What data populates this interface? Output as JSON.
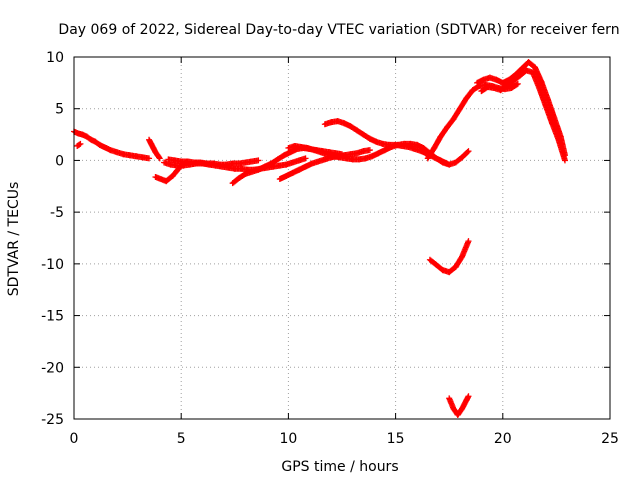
{
  "chart_data": {
    "type": "scatter",
    "title": "Day 069 of 2022, Sidereal Day-to-day VTEC variation (SDTVAR) for receiver fern",
    "xlabel": "GPS time / hours",
    "ylabel": "SDTVAR / TECUs",
    "xlim": [
      0,
      25
    ],
    "ylim": [
      -25,
      10
    ],
    "xticks": [
      "0",
      "5",
      "10",
      "15",
      "20",
      "25"
    ],
    "yticks": [
      "10",
      "5",
      "0",
      "-5",
      "-10",
      "-15",
      "-20",
      "-25"
    ],
    "grid": true,
    "marker": "+",
    "color": "#ff0000",
    "series": [
      {
        "name": "SDTVAR",
        "segments": [
          [
            [
              0.0,
              2.8
            ],
            [
              0.2,
              2.6
            ],
            [
              0.4,
              2.5
            ],
            [
              0.6,
              2.3
            ],
            [
              0.8,
              2.0
            ],
            [
              1.0,
              1.8
            ],
            [
              1.2,
              1.5
            ],
            [
              1.5,
              1.2
            ],
            [
              1.7,
              1.0
            ],
            [
              2.0,
              0.8
            ],
            [
              2.3,
              0.6
            ],
            [
              2.6,
              0.5
            ],
            [
              2.9,
              0.4
            ],
            [
              3.2,
              0.3
            ],
            [
              3.5,
              0.2
            ]
          ],
          [
            [
              0.15,
              1.4
            ],
            [
              0.3,
              1.6
            ]
          ],
          [
            [
              3.5,
              2.0
            ],
            [
              3.6,
              1.6
            ],
            [
              3.7,
              1.2
            ],
            [
              3.8,
              0.8
            ],
            [
              3.9,
              0.5
            ],
            [
              4.0,
              0.2
            ]
          ],
          [
            [
              3.8,
              -1.6
            ],
            [
              4.3,
              -2.0
            ],
            [
              4.6,
              -1.5
            ],
            [
              4.8,
              -1.0
            ],
            [
              5.0,
              -0.5
            ],
            [
              5.2,
              -0.2
            ]
          ],
          [
            [
              4.2,
              -0.2
            ],
            [
              4.5,
              -0.4
            ],
            [
              4.8,
              -0.5
            ],
            [
              5.1,
              -0.5
            ],
            [
              5.4,
              -0.4
            ],
            [
              5.7,
              -0.3
            ],
            [
              6.0,
              -0.3
            ],
            [
              6.3,
              -0.4
            ],
            [
              6.6,
              -0.5
            ],
            [
              6.9,
              -0.6
            ],
            [
              7.2,
              -0.7
            ],
            [
              7.5,
              -0.8
            ],
            [
              7.8,
              -0.8
            ],
            [
              8.1,
              -0.9
            ],
            [
              8.4,
              -0.9
            ],
            [
              8.7,
              -0.8
            ],
            [
              9.0,
              -0.7
            ],
            [
              9.3,
              -0.6
            ],
            [
              9.6,
              -0.5
            ],
            [
              9.9,
              -0.4
            ],
            [
              10.2,
              -0.2
            ],
            [
              10.5,
              0.0
            ],
            [
              10.8,
              0.2
            ]
          ],
          [
            [
              4.4,
              0.1
            ],
            [
              4.7,
              0.0
            ],
            [
              5.0,
              -0.1
            ],
            [
              5.3,
              -0.1
            ],
            [
              5.6,
              -0.2
            ],
            [
              5.9,
              -0.2
            ],
            [
              6.2,
              -0.3
            ],
            [
              6.5,
              -0.3
            ],
            [
              6.8,
              -0.4
            ],
            [
              7.1,
              -0.4
            ],
            [
              7.4,
              -0.3
            ],
            [
              7.7,
              -0.3
            ],
            [
              8.0,
              -0.2
            ],
            [
              8.3,
              -0.1
            ],
            [
              8.6,
              0.0
            ]
          ],
          [
            [
              7.4,
              -2.2
            ],
            [
              7.7,
              -1.7
            ],
            [
              8.0,
              -1.3
            ],
            [
              8.3,
              -1.1
            ],
            [
              8.6,
              -0.9
            ],
            [
              8.9,
              -0.6
            ],
            [
              9.2,
              -0.3
            ],
            [
              9.5,
              0.1
            ],
            [
              9.8,
              0.5
            ],
            [
              10.1,
              0.8
            ],
            [
              10.4,
              1.1
            ],
            [
              10.7,
              1.2
            ],
            [
              11.0,
              1.1
            ],
            [
              11.3,
              1.0
            ],
            [
              11.6,
              0.9
            ],
            [
              11.9,
              0.8
            ],
            [
              12.2,
              0.7
            ],
            [
              12.5,
              0.6
            ]
          ],
          [
            [
              9.6,
              -1.8
            ],
            [
              9.9,
              -1.5
            ],
            [
              10.2,
              -1.2
            ],
            [
              10.5,
              -0.9
            ],
            [
              10.8,
              -0.6
            ],
            [
              11.1,
              -0.3
            ],
            [
              11.4,
              -0.1
            ],
            [
              11.7,
              0.1
            ],
            [
              12.0,
              0.3
            ],
            [
              12.3,
              0.4
            ],
            [
              12.6,
              0.5
            ],
            [
              12.9,
              0.6
            ],
            [
              13.2,
              0.7
            ],
            [
              13.5,
              0.9
            ],
            [
              13.8,
              1.0
            ]
          ],
          [
            [
              10.0,
              1.2
            ],
            [
              10.3,
              1.4
            ],
            [
              10.6,
              1.3
            ],
            [
              10.9,
              1.2
            ],
            [
              11.2,
              1.0
            ],
            [
              11.5,
              0.8
            ],
            [
              11.8,
              0.6
            ],
            [
              12.1,
              0.4
            ],
            [
              12.4,
              0.3
            ],
            [
              12.7,
              0.2
            ],
            [
              13.0,
              0.1
            ],
            [
              13.3,
              0.1
            ],
            [
              13.6,
              0.2
            ],
            [
              13.9,
              0.4
            ],
            [
              14.2,
              0.7
            ],
            [
              14.5,
              1.0
            ],
            [
              14.8,
              1.3
            ],
            [
              15.1,
              1.5
            ],
            [
              15.4,
              1.6
            ],
            [
              15.7,
              1.6
            ],
            [
              16.0,
              1.5
            ],
            [
              16.3,
              1.2
            ],
            [
              16.6,
              0.7
            ],
            [
              16.9,
              0.2
            ],
            [
              17.2,
              -0.2
            ],
            [
              17.5,
              -0.4
            ],
            [
              17.8,
              -0.2
            ],
            [
              18.1,
              0.3
            ],
            [
              18.4,
              0.9
            ]
          ],
          [
            [
              11.7,
              3.5
            ],
            [
              12.0,
              3.7
            ],
            [
              12.3,
              3.8
            ],
            [
              12.6,
              3.6
            ],
            [
              12.9,
              3.3
            ],
            [
              13.2,
              2.9
            ],
            [
              13.5,
              2.5
            ],
            [
              13.8,
              2.1
            ],
            [
              14.1,
              1.8
            ],
            [
              14.4,
              1.6
            ],
            [
              14.7,
              1.5
            ],
            [
              15.0,
              1.5
            ],
            [
              15.3,
              1.4
            ],
            [
              15.6,
              1.3
            ],
            [
              15.9,
              1.1
            ],
            [
              16.2,
              0.9
            ],
            [
              16.5,
              0.6
            ],
            [
              16.8,
              0.3
            ],
            [
              17.1,
              0.0
            ],
            [
              17.4,
              -0.3
            ]
          ],
          [
            [
              16.5,
              0.2
            ],
            [
              16.8,
              1.2
            ],
            [
              17.1,
              2.3
            ],
            [
              17.4,
              3.2
            ],
            [
              17.7,
              4.0
            ],
            [
              18.0,
              5.0
            ],
            [
              18.3,
              6.0
            ],
            [
              18.6,
              6.8
            ],
            [
              18.9,
              7.2
            ],
            [
              19.2,
              7.3
            ],
            [
              19.5,
              7.2
            ],
            [
              19.8,
              7.0
            ],
            [
              20.1,
              6.9
            ],
            [
              20.4,
              7.0
            ],
            [
              20.7,
              7.4
            ]
          ],
          [
            [
              18.8,
              7.5
            ],
            [
              19.1,
              7.8
            ],
            [
              19.4,
              8.0
            ],
            [
              19.7,
              7.8
            ],
            [
              20.0,
              7.5
            ],
            [
              20.3,
              7.8
            ],
            [
              20.6,
              8.3
            ],
            [
              20.9,
              8.9
            ],
            [
              21.2,
              9.5
            ],
            [
              21.5,
              9.0
            ],
            [
              21.8,
              7.6
            ],
            [
              22.1,
              5.9
            ],
            [
              22.4,
              4.1
            ],
            [
              22.7,
              2.3
            ],
            [
              22.9,
              0.5
            ]
          ],
          [
            [
              19.0,
              6.7
            ],
            [
              19.3,
              7.1
            ],
            [
              19.6,
              7.0
            ],
            [
              19.9,
              6.8
            ],
            [
              20.2,
              7.2
            ],
            [
              20.5,
              7.7
            ],
            [
              20.8,
              8.2
            ],
            [
              21.1,
              8.7
            ],
            [
              21.4,
              8.5
            ],
            [
              21.7,
              7.0
            ],
            [
              22.0,
              5.3
            ],
            [
              22.3,
              3.6
            ],
            [
              22.6,
              2.0
            ],
            [
              22.9,
              0.0
            ]
          ],
          [
            [
              16.6,
              -9.6
            ],
            [
              16.9,
              -10.1
            ],
            [
              17.2,
              -10.6
            ],
            [
              17.5,
              -10.8
            ],
            [
              17.8,
              -10.3
            ],
            [
              18.1,
              -9.3
            ],
            [
              18.4,
              -7.8
            ]
          ],
          [
            [
              17.5,
              -23.0
            ],
            [
              17.7,
              -24.0
            ],
            [
              17.9,
              -24.6
            ],
            [
              18.1,
              -24.0
            ],
            [
              18.3,
              -23.2
            ],
            [
              18.4,
              -22.8
            ]
          ]
        ]
      }
    ]
  }
}
